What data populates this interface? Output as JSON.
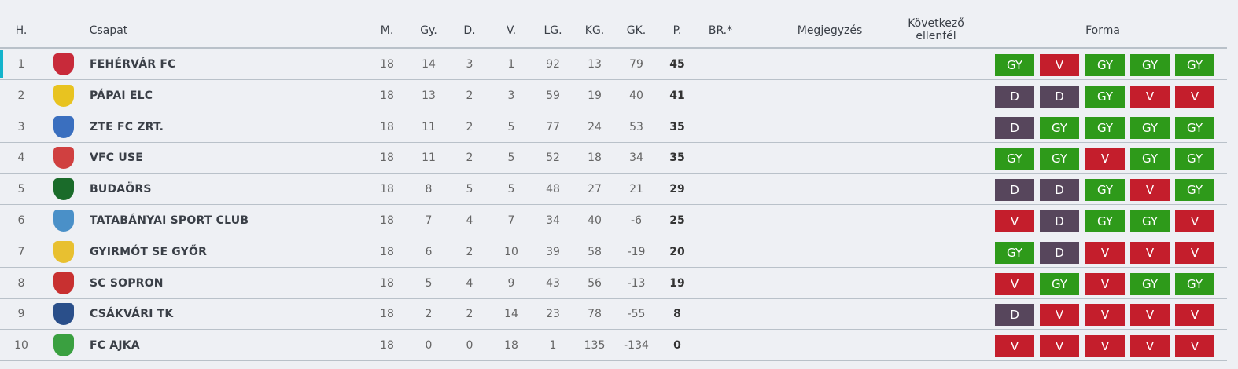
{
  "headers": {
    "pos": "H.",
    "team": "Csapat",
    "m": "M.",
    "gy": "Gy.",
    "d": "D.",
    "v": "V.",
    "lg": "LG.",
    "kg": "KG.",
    "gk": "GK.",
    "p": "P.",
    "br": "BR.*",
    "note": "Megjegyzés",
    "next": "Következő ellenfél",
    "form": "Forma"
  },
  "colors": {
    "GY": "#2e9a1a",
    "V": "#c41e2c",
    "D": "#57465c",
    "highlight": "#13b4cc"
  },
  "rows": [
    {
      "pos": "1",
      "team": "FEHÉRVÁR FC",
      "m": "18",
      "gy": "14",
      "d": "3",
      "v": "1",
      "lg": "92",
      "kg": "13",
      "gk": "79",
      "p": "45",
      "form": [
        "GY",
        "V",
        "GY",
        "GY",
        "GY"
      ],
      "logo": "#c82a3a"
    },
    {
      "pos": "2",
      "team": "PÁPAI ELC",
      "m": "18",
      "gy": "13",
      "d": "2",
      "v": "3",
      "lg": "59",
      "kg": "19",
      "gk": "40",
      "p": "41",
      "form": [
        "D",
        "D",
        "GY",
        "V",
        "V"
      ],
      "logo": "#e8c320"
    },
    {
      "pos": "3",
      "team": "ZTE FC ZRT.",
      "m": "18",
      "gy": "11",
      "d": "2",
      "v": "5",
      "lg": "77",
      "kg": "24",
      "gk": "53",
      "p": "35",
      "form": [
        "D",
        "GY",
        "GY",
        "GY",
        "GY"
      ],
      "logo": "#3a6fbf"
    },
    {
      "pos": "4",
      "team": "VFC USE",
      "m": "18",
      "gy": "11",
      "d": "2",
      "v": "5",
      "lg": "52",
      "kg": "18",
      "gk": "34",
      "p": "35",
      "form": [
        "GY",
        "GY",
        "V",
        "GY",
        "GY"
      ],
      "logo": "#d04040"
    },
    {
      "pos": "5",
      "team": "BUDAÖRS",
      "m": "18",
      "gy": "8",
      "d": "5",
      "v": "5",
      "lg": "48",
      "kg": "27",
      "gk": "21",
      "p": "29",
      "form": [
        "D",
        "D",
        "GY",
        "V",
        "GY"
      ],
      "logo": "#1a6b2a"
    },
    {
      "pos": "6",
      "team": "TATABÁNYAI SPORT CLUB",
      "m": "18",
      "gy": "7",
      "d": "4",
      "v": "7",
      "lg": "34",
      "kg": "40",
      "gk": "-6",
      "p": "25",
      "form": [
        "V",
        "D",
        "GY",
        "GY",
        "V"
      ],
      "logo": "#4a90c8"
    },
    {
      "pos": "7",
      "team": "GYIRMÓT SE GYŐR",
      "m": "18",
      "gy": "6",
      "d": "2",
      "v": "10",
      "lg": "39",
      "kg": "58",
      "gk": "-19",
      "p": "20",
      "form": [
        "GY",
        "D",
        "V",
        "V",
        "V"
      ],
      "logo": "#e8c030"
    },
    {
      "pos": "8",
      "team": "SC SOPRON",
      "m": "18",
      "gy": "5",
      "d": "4",
      "v": "9",
      "lg": "43",
      "kg": "56",
      "gk": "-13",
      "p": "19",
      "form": [
        "V",
        "GY",
        "V",
        "GY",
        "GY"
      ],
      "logo": "#c83030"
    },
    {
      "pos": "9",
      "team": "CSÁKVÁRI TK",
      "m": "18",
      "gy": "2",
      "d": "2",
      "v": "14",
      "lg": "23",
      "kg": "78",
      "gk": "-55",
      "p": "8",
      "form": [
        "D",
        "V",
        "V",
        "V",
        "V"
      ],
      "logo": "#2a4f8a"
    },
    {
      "pos": "10",
      "team": "FC AJKA",
      "m": "18",
      "gy": "0",
      "d": "0",
      "v": "18",
      "lg": "1",
      "kg": "135",
      "gk": "-134",
      "p": "0",
      "form": [
        "V",
        "V",
        "V",
        "V",
        "V"
      ],
      "logo": "#3aa040"
    }
  ]
}
